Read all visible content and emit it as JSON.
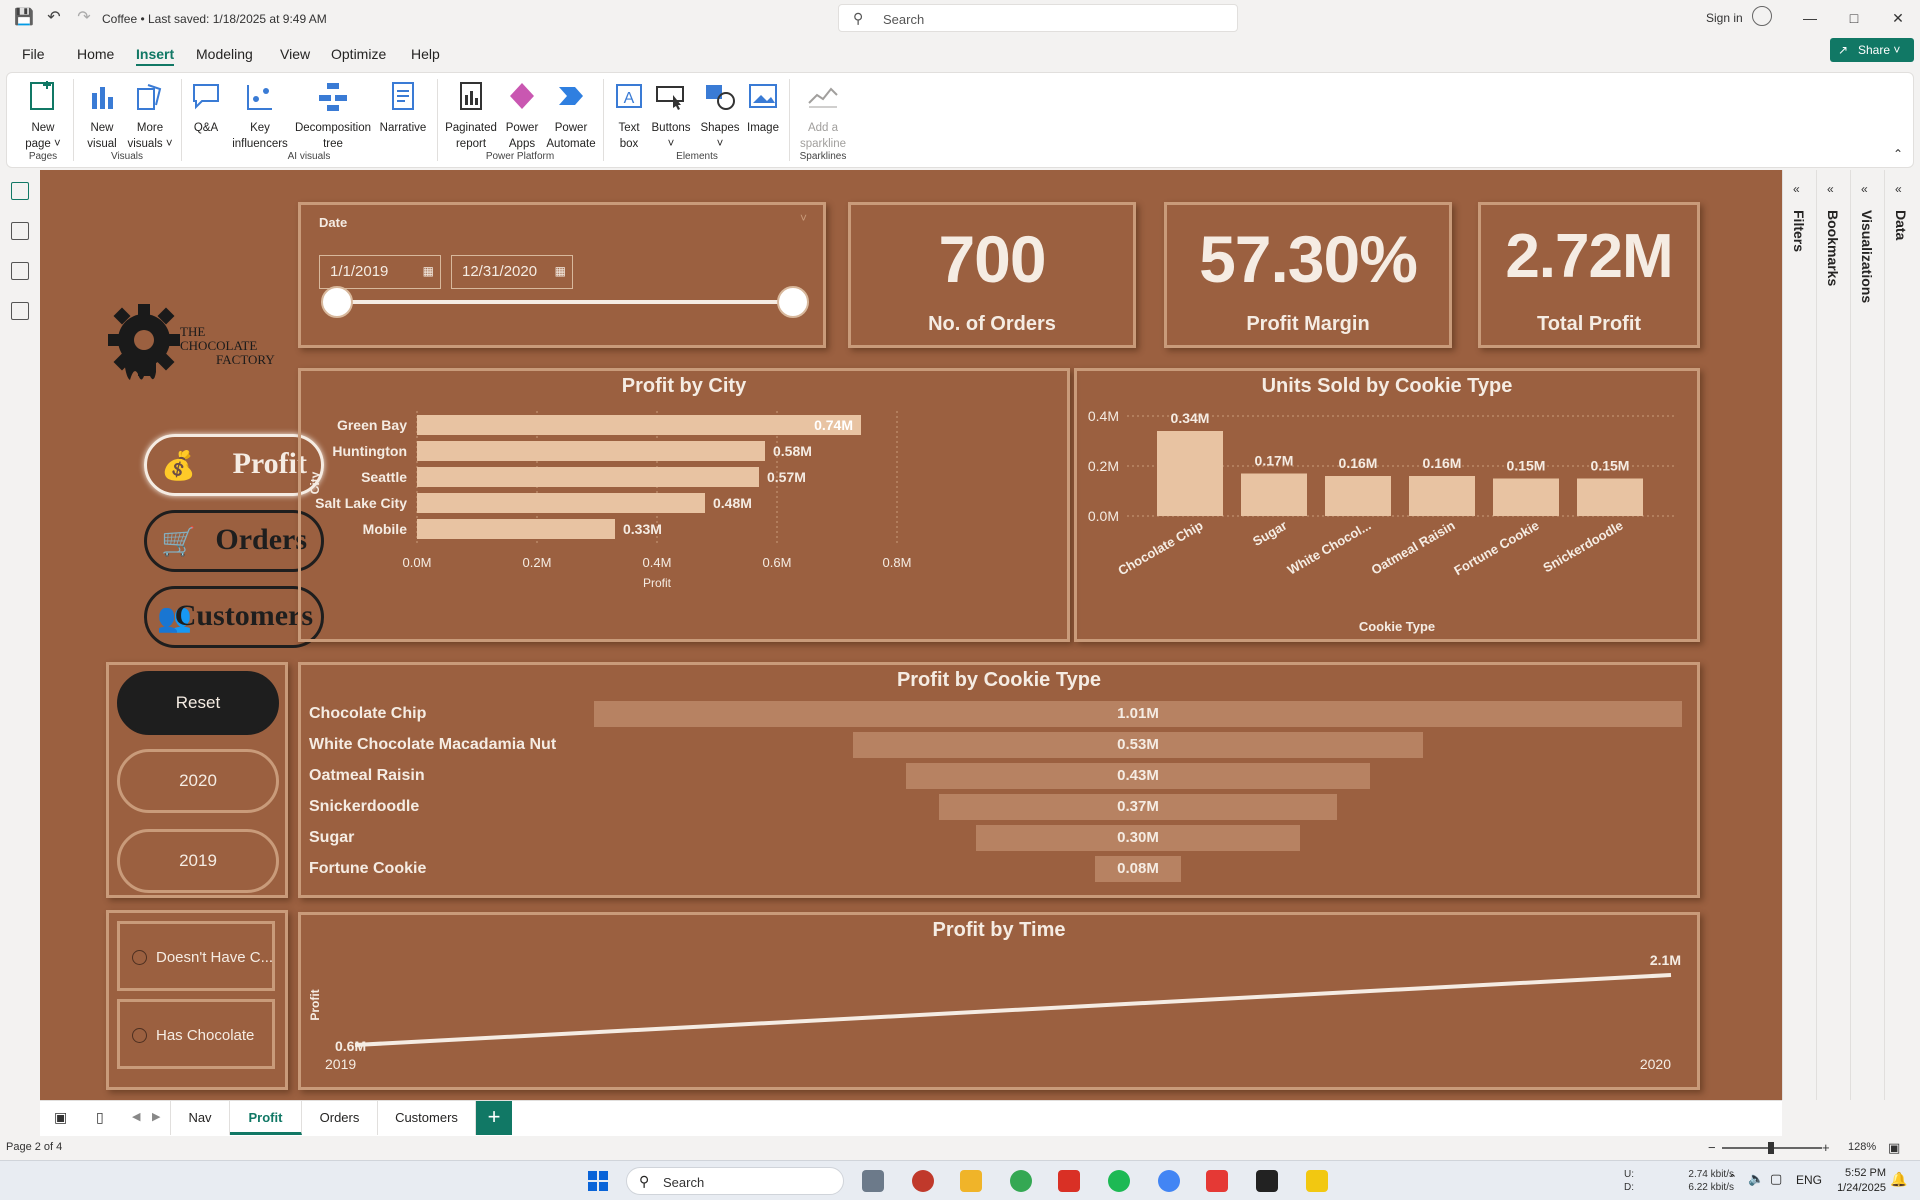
{
  "app": {
    "doc_title": "Coffee • Last saved: 1/18/2025 at 9:49 AM",
    "search_placeholder": "Search",
    "sign_in": "Sign in",
    "share": "Share"
  },
  "menu": [
    "File",
    "Home",
    "Insert",
    "Modeling",
    "View",
    "Optimize",
    "Help"
  ],
  "ribbon": {
    "new_page": [
      "New",
      "page ˅"
    ],
    "new_visual": [
      "New",
      "visual"
    ],
    "more_visuals": [
      "More",
      "visuals ˅"
    ],
    "qa": "Q&A",
    "key_influencers": [
      "Key",
      "influencers"
    ],
    "decomposition_tree": [
      "Decomposition",
      "tree"
    ],
    "narrative": "Narrative",
    "paginated_report": [
      "Paginated",
      "report"
    ],
    "power_apps": [
      "Power",
      "Apps"
    ],
    "power_automate": [
      "Power",
      "Automate"
    ],
    "text_box": [
      "Text",
      "box"
    ],
    "buttons": "Buttons",
    "shapes": "Shapes",
    "image": "Image",
    "add_sparkline": [
      "Add a",
      "sparkline"
    ],
    "groups": {
      "pages": "Pages",
      "visuals": "Visuals",
      "ai_visuals": "AI visuals",
      "power_platform": "Power Platform",
      "elements": "Elements",
      "sparklines": "Sparklines"
    }
  },
  "report": {
    "logo_line1": "THE",
    "logo_line2": "CHOCOLATE",
    "logo_line3": "FACTORY",
    "nav": {
      "profit": "Profit",
      "orders": "Orders",
      "customers": "Customers"
    },
    "filters": {
      "reset": "Reset",
      "y2020": "2020",
      "y2019": "2019"
    },
    "chocolate": {
      "doesnt": "Doesn't Have C...",
      "has": "Has Chocolate"
    },
    "date_slicer": {
      "title": "Date",
      "start": "1/1/2019",
      "end": "12/31/2020"
    },
    "kpis": [
      {
        "value": "700",
        "label": "No. of Orders"
      },
      {
        "value": "57.30%",
        "label": "Profit Margin"
      },
      {
        "value": "2.72M",
        "label": "Total Profit"
      }
    ]
  },
  "chart_data": [
    {
      "type": "bar",
      "orientation": "horizontal",
      "title": "Profit by City",
      "xlabel": "Profit",
      "ylabel": "City",
      "categories": [
        "Green Bay",
        "Huntington",
        "Seattle",
        "Salt Lake City",
        "Mobile"
      ],
      "values": [
        0.74,
        0.58,
        0.57,
        0.48,
        0.33
      ],
      "data_labels": [
        "0.74M",
        "0.58M",
        "0.57M",
        "0.48M",
        "0.33M"
      ],
      "xlim": [
        0,
        0.8
      ],
      "ticks": [
        "0.0M",
        "0.2M",
        "0.4M",
        "0.6M",
        "0.8M"
      ],
      "grid": true
    },
    {
      "type": "bar",
      "title": "Units Sold by Cookie Type",
      "xlabel": "Cookie Type",
      "ylabel": "",
      "categories": [
        "Chocolate Chip",
        "Sugar",
        "White Chocol...",
        "Oatmeal Raisin",
        "Fortune Cookie",
        "Snickerdoodle"
      ],
      "values": [
        0.34,
        0.17,
        0.16,
        0.16,
        0.15,
        0.15
      ],
      "data_labels": [
        "0.34M",
        "0.17M",
        "0.16M",
        "0.16M",
        "0.15M",
        "0.15M"
      ],
      "ylim": [
        0,
        0.4
      ],
      "ticks": [
        "0.0M",
        "0.2M",
        "0.4M"
      ],
      "grid": true
    },
    {
      "type": "bar",
      "subtype": "funnel",
      "title": "Profit by Cookie Type",
      "categories": [
        "Chocolate Chip",
        "White Chocolate Macadamia Nut",
        "Oatmeal Raisin",
        "Snickerdoodle",
        "Sugar",
        "Fortune Cookie"
      ],
      "values": [
        1.01,
        0.53,
        0.43,
        0.37,
        0.3,
        0.08
      ],
      "data_labels": [
        "1.01M",
        "0.53M",
        "0.43M",
        "0.37M",
        "0.30M",
        "0.08M"
      ]
    },
    {
      "type": "line",
      "title": "Profit by Time",
      "ylabel": "Profit",
      "x": [
        "2019",
        "2020"
      ],
      "values": [
        0.6,
        2.1
      ],
      "data_labels": [
        "0.6M",
        "2.1M"
      ]
    }
  ],
  "side_panes": [
    "Filters",
    "Bookmarks",
    "Visualizations",
    "Data"
  ],
  "page_tabs": [
    "Nav",
    "Profit",
    "Orders",
    "Customers"
  ],
  "status": {
    "page": "Page 2 of 4",
    "zoom": "128%"
  },
  "taskbar": {
    "search": "Search",
    "net_up": "2.74 kbit/s",
    "net_down": "6.22 kbit/s",
    "up_label": "U:",
    "down_label": "D:",
    "lang": "ENG",
    "time": "5:52 PM",
    "date": "1/24/2025"
  },
  "colors": {
    "report_bg": "#9b6040",
    "accent": "#117865",
    "bar": "#e8c3a2",
    "border": "#c99b7a"
  }
}
